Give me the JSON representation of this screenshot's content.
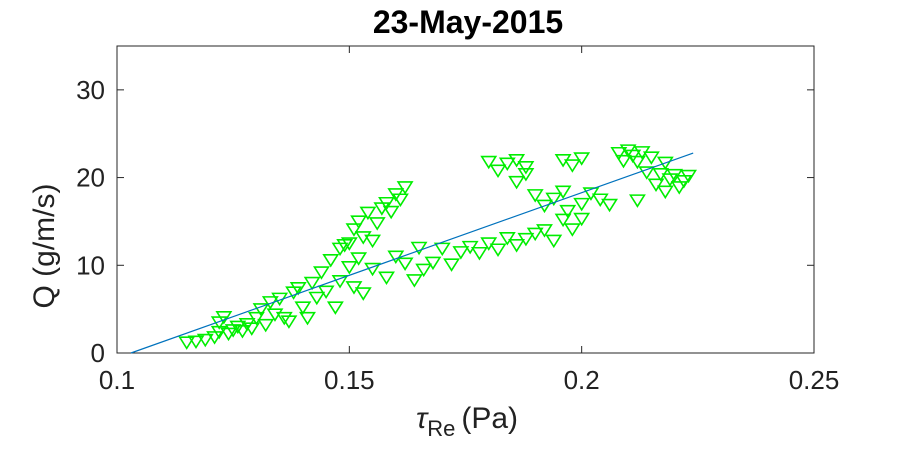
{
  "chart_data": {
    "type": "scatter",
    "title": "23-May-2015",
    "xlabel_symbol": "τ",
    "xlabel_subscript": "Re",
    "xlabel_unit": "(Pa)",
    "ylabel": "Q (g/m/s)",
    "xlim": [
      0.1,
      0.25
    ],
    "ylim": [
      0,
      35
    ],
    "xticks": [
      0.1,
      0.15,
      0.2,
      0.25
    ],
    "xtick_labels": [
      "0.1",
      "0.15",
      "0.2",
      "0.25"
    ],
    "yticks": [
      0,
      10,
      20,
      30
    ],
    "ytick_labels": [
      "0",
      "10",
      "20",
      "30"
    ],
    "grid": false,
    "marker": "triangle-down",
    "marker_color": "#00ee00",
    "fit_color": "#0072bd",
    "fit_line": {
      "x": [
        0.103,
        0.224
      ],
      "y": [
        0,
        22.8
      ]
    },
    "points": [
      [
        0.115,
        1.2
      ],
      [
        0.117,
        1.3
      ],
      [
        0.119,
        1.5
      ],
      [
        0.121,
        1.8
      ],
      [
        0.122,
        2.4
      ],
      [
        0.122,
        3.5
      ],
      [
        0.123,
        4.1
      ],
      [
        0.124,
        2.2
      ],
      [
        0.125,
        2.6
      ],
      [
        0.126,
        3.0
      ],
      [
        0.127,
        2.5
      ],
      [
        0.128,
        3.3
      ],
      [
        0.129,
        2.8
      ],
      [
        0.13,
        4.0
      ],
      [
        0.131,
        5.0
      ],
      [
        0.132,
        3.2
      ],
      [
        0.133,
        5.8
      ],
      [
        0.134,
        4.4
      ],
      [
        0.135,
        6.2
      ],
      [
        0.136,
        4.0
      ],
      [
        0.137,
        3.6
      ],
      [
        0.138,
        6.9
      ],
      [
        0.139,
        7.4
      ],
      [
        0.14,
        5.2
      ],
      [
        0.141,
        4.0
      ],
      [
        0.142,
        8.0
      ],
      [
        0.143,
        6.3
      ],
      [
        0.144,
        9.2
      ],
      [
        0.145,
        7.0
      ],
      [
        0.146,
        10.6
      ],
      [
        0.147,
        5.2
      ],
      [
        0.148,
        8.2
      ],
      [
        0.148,
        11.9
      ],
      [
        0.149,
        12.3
      ],
      [
        0.15,
        9.8
      ],
      [
        0.15,
        12.5
      ],
      [
        0.151,
        14.1
      ],
      [
        0.151,
        7.5
      ],
      [
        0.152,
        15.0
      ],
      [
        0.152,
        10.8
      ],
      [
        0.153,
        13.2
      ],
      [
        0.153,
        6.8
      ],
      [
        0.154,
        16.0
      ],
      [
        0.155,
        12.8
      ],
      [
        0.155,
        9.6
      ],
      [
        0.156,
        14.8
      ],
      [
        0.157,
        16.5
      ],
      [
        0.158,
        17.1
      ],
      [
        0.158,
        8.6
      ],
      [
        0.159,
        16.1
      ],
      [
        0.16,
        18.1
      ],
      [
        0.161,
        17.5
      ],
      [
        0.162,
        18.9
      ],
      [
        0.16,
        11.0
      ],
      [
        0.162,
        10.2
      ],
      [
        0.164,
        8.3
      ],
      [
        0.165,
        12.0
      ],
      [
        0.166,
        9.5
      ],
      [
        0.168,
        10.3
      ],
      [
        0.17,
        11.9
      ],
      [
        0.172,
        10.1
      ],
      [
        0.174,
        11.5
      ],
      [
        0.176,
        12.1
      ],
      [
        0.178,
        11.4
      ],
      [
        0.18,
        12.5
      ],
      [
        0.182,
        11.8
      ],
      [
        0.184,
        13.1
      ],
      [
        0.186,
        12.3
      ],
      [
        0.188,
        13.0
      ],
      [
        0.19,
        13.6
      ],
      [
        0.192,
        14.0
      ],
      [
        0.194,
        12.8
      ],
      [
        0.196,
        15.2
      ],
      [
        0.198,
        14.1
      ],
      [
        0.2,
        15.3
      ],
      [
        0.18,
        21.8
      ],
      [
        0.182,
        20.8
      ],
      [
        0.184,
        21.6
      ],
      [
        0.186,
        22.0
      ],
      [
        0.188,
        21.2
      ],
      [
        0.186,
        19.5
      ],
      [
        0.188,
        20.4
      ],
      [
        0.19,
        18.0
      ],
      [
        0.192,
        16.8
      ],
      [
        0.194,
        17.6
      ],
      [
        0.196,
        18.4
      ],
      [
        0.196,
        22.0
      ],
      [
        0.198,
        21.4
      ],
      [
        0.2,
        22.2
      ],
      [
        0.197,
        16.2
      ],
      [
        0.2,
        17.0
      ],
      [
        0.202,
        18.2
      ],
      [
        0.204,
        17.5
      ],
      [
        0.206,
        16.9
      ],
      [
        0.208,
        22.8
      ],
      [
        0.209,
        21.9
      ],
      [
        0.21,
        23.1
      ],
      [
        0.211,
        22.5
      ],
      [
        0.212,
        21.8
      ],
      [
        0.213,
        22.9
      ],
      [
        0.214,
        20.6
      ],
      [
        0.215,
        22.3
      ],
      [
        0.216,
        19.2
      ],
      [
        0.217,
        20.4
      ],
      [
        0.218,
        21.7
      ],
      [
        0.219,
        19.8
      ],
      [
        0.22,
        20.3
      ],
      [
        0.221,
        18.9
      ],
      [
        0.222,
        19.6
      ],
      [
        0.223,
        20.2
      ],
      [
        0.212,
        17.4
      ],
      [
        0.218,
        18.4
      ]
    ]
  }
}
